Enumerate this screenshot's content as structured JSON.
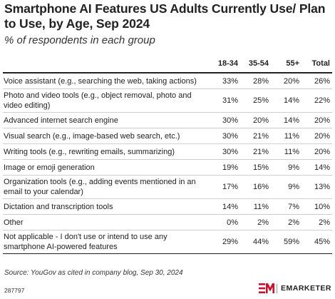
{
  "chart_data": {
    "type": "table",
    "title": "Smartphone AI Features US Adults Currently Use/ Plan to Use, by Age, Sep 2024",
    "subtitle": "% of respondents in each group",
    "columns": [
      "",
      "18-34",
      "35-54",
      "55+",
      "Total"
    ],
    "rows": [
      {
        "label": "Voice assistant (e.g., searching the web, taking actions)",
        "values": [
          "33%",
          "28%",
          "20%",
          "26%"
        ]
      },
      {
        "label": "Photo and video tools (e.g., object removal, photo and video editing)",
        "values": [
          "31%",
          "25%",
          "14%",
          "22%"
        ]
      },
      {
        "label": "Advanced internet search engine",
        "values": [
          "30%",
          "20%",
          "14%",
          "20%"
        ]
      },
      {
        "label": "Visual search (e.g., image-based web search, etc.)",
        "values": [
          "30%",
          "21%",
          "11%",
          "20%"
        ]
      },
      {
        "label": "Writing tools (e.g., rewriting emails, summarizing)",
        "values": [
          "30%",
          "21%",
          "11%",
          "20%"
        ]
      },
      {
        "label": "Image or emoji generation",
        "values": [
          "19%",
          "15%",
          "9%",
          "14%"
        ]
      },
      {
        "label": "Organization tools (e.g., adding events mentioned in an email to your calendar)",
        "values": [
          "17%",
          "16%",
          "9%",
          "13%"
        ]
      },
      {
        "label": "Dictation and transcription tools",
        "values": [
          "14%",
          "11%",
          "7%",
          "10%"
        ]
      },
      {
        "label": "Other",
        "values": [
          "0%",
          "2%",
          "2%",
          "2%"
        ]
      },
      {
        "label": "Not applicable - I don't use or intend to use any smartphone AI-powered features",
        "values": [
          "29%",
          "44%",
          "59%",
          "45%"
        ]
      }
    ],
    "source": "Source: YouGov as cited in company blog, Sep 30, 2024"
  },
  "footer": {
    "chart_id": "287797",
    "brand": "EMARKETER",
    "brand_color": "#c8102e"
  }
}
